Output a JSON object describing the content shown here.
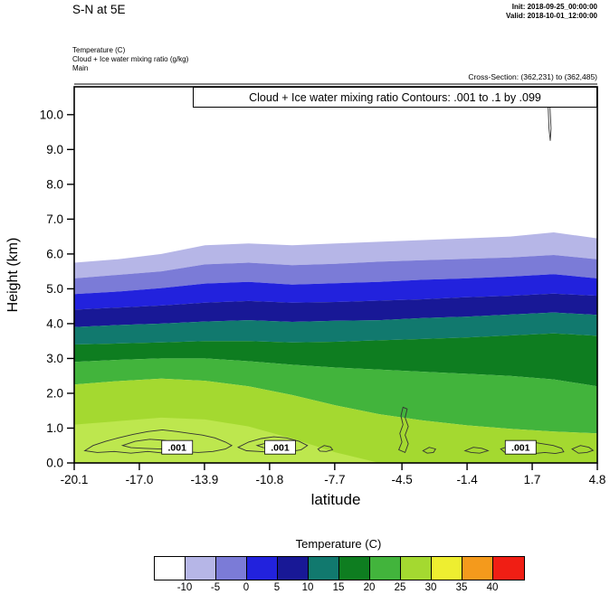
{
  "header": {
    "title": "S-N at 5E",
    "init": "Init: 2018-09-25_00:00:00",
    "valid": "Valid: 2018-10-01_12:00:00",
    "fields": [
      "Temperature   (C)",
      "Cloud + Ice water mixing ratio   (g/kg)",
      "Main"
    ],
    "cross_section": "Cross-Section: (362,231) to (362,485)"
  },
  "chart_data": {
    "type": "heatmap",
    "subtype": "filled-contour-vertical-cross-section",
    "title": "Cloud + Ice water mixing ratio Contours: .001 to .1 by .099",
    "xlabel": "latitude",
    "ylabel": "Height (km)",
    "xlim": [
      -20.1,
      4.8
    ],
    "ylim": [
      0,
      10.8
    ],
    "x_ticks": [
      -20.1,
      -17.0,
      -13.9,
      -10.8,
      -7.7,
      -4.5,
      -1.4,
      1.7,
      4.8
    ],
    "x_tick_labels": [
      "-20.1",
      "-17.0",
      "-13.9",
      "-10.8",
      "-7.7",
      "-4.5",
      "-1.4",
      "1.7",
      "4.8"
    ],
    "y_ticks": [
      0,
      1,
      2,
      3,
      4,
      5,
      6,
      7,
      8,
      9,
      10
    ],
    "y_tick_labels": [
      "0.0",
      "1.0",
      "2.0",
      "3.0",
      "4.0",
      "5.0",
      "6.0",
      "7.0",
      "8.0",
      "9.0",
      "10.0"
    ],
    "grid": false,
    "temperature_fill": {
      "units": "C",
      "levels": [
        -10,
        -5,
        0,
        5,
        10,
        15,
        20,
        25,
        30,
        35,
        40
      ],
      "colors": [
        "#ffffff",
        "#b6b6e7",
        "#7b7bd7",
        "#2222dd",
        "#181896",
        "#11796e",
        "#0e7d20",
        "#42b43c",
        "#a4d930",
        "#eeee30",
        "#f49a1c",
        "#f01e14"
      ],
      "band_boundaries": [
        {
          "level": -10,
          "heights": [
            5.75,
            5.85,
            6.0,
            6.25,
            6.3,
            6.25,
            6.3,
            6.35,
            6.4,
            6.45,
            6.5,
            6.62,
            6.45
          ]
        },
        {
          "level": -5,
          "heights": [
            5.3,
            5.4,
            5.5,
            5.7,
            5.75,
            5.68,
            5.72,
            5.78,
            5.82,
            5.86,
            5.9,
            5.97,
            5.85
          ]
        },
        {
          "level": 0,
          "heights": [
            4.85,
            4.92,
            5.02,
            5.15,
            5.2,
            5.12,
            5.16,
            5.2,
            5.26,
            5.3,
            5.35,
            5.42,
            5.3
          ]
        },
        {
          "level": 5,
          "heights": [
            4.4,
            4.46,
            4.52,
            4.6,
            4.65,
            4.6,
            4.62,
            4.66,
            4.7,
            4.76,
            4.8,
            4.86,
            4.8
          ]
        },
        {
          "level": 10,
          "heights": [
            3.9,
            3.96,
            4.0,
            4.06,
            4.1,
            4.05,
            4.08,
            4.1,
            4.16,
            4.2,
            4.26,
            4.32,
            4.25
          ]
        },
        {
          "level": 15,
          "heights": [
            3.4,
            3.43,
            3.46,
            3.5,
            3.5,
            3.46,
            3.48,
            3.52,
            3.56,
            3.6,
            3.66,
            3.72,
            3.65
          ]
        },
        {
          "level": 20,
          "heights": [
            2.9,
            2.96,
            3.0,
            3.0,
            2.92,
            2.82,
            2.74,
            2.68,
            2.62,
            2.56,
            2.5,
            2.4,
            2.2
          ]
        },
        {
          "level": 25,
          "heights": [
            2.25,
            2.35,
            2.42,
            2.36,
            2.2,
            1.95,
            1.65,
            1.4,
            1.22,
            1.08,
            0.98,
            0.9,
            0.85
          ]
        }
      ],
      "surface_patch": {
        "color": "#bde74e",
        "heights": [
          1.1,
          1.2,
          1.3,
          1.25,
          1.05,
          0.7,
          0.3,
          0.0,
          0.0,
          0.0,
          0.0,
          0.0,
          0.0
        ]
      }
    },
    "cloud_contours": {
      "levels_text": ".001 to .1 by .099",
      "color": "#333333",
      "labels": [
        {
          "x": -15.2,
          "y": 0.45,
          "text": ".001"
        },
        {
          "x": -10.3,
          "y": 0.45,
          "text": ".001"
        },
        {
          "x": 1.15,
          "y": 0.45,
          "text": ".001"
        }
      ],
      "paths": [
        {
          "closed": true,
          "points": [
            [
              -19.6,
              0.35
            ],
            [
              -19.2,
              0.5
            ],
            [
              -18.6,
              0.62
            ],
            [
              -18.0,
              0.72
            ],
            [
              -17.3,
              0.82
            ],
            [
              -16.6,
              0.9
            ],
            [
              -15.9,
              0.95
            ],
            [
              -15.2,
              0.9
            ],
            [
              -14.6,
              0.85
            ],
            [
              -14.0,
              0.8
            ],
            [
              -13.4,
              0.72
            ],
            [
              -12.9,
              0.6
            ],
            [
              -12.6,
              0.5
            ],
            [
              -12.9,
              0.4
            ],
            [
              -13.5,
              0.33
            ],
            [
              -14.2,
              0.3
            ],
            [
              -15.0,
              0.33
            ],
            [
              -15.8,
              0.28
            ],
            [
              -16.6,
              0.33
            ],
            [
              -17.4,
              0.28
            ],
            [
              -18.2,
              0.33
            ],
            [
              -19.0,
              0.3
            ]
          ]
        },
        {
          "closed": true,
          "points": [
            [
              -17.8,
              0.5
            ],
            [
              -17.2,
              0.62
            ],
            [
              -16.5,
              0.68
            ],
            [
              -15.8,
              0.65
            ],
            [
              -15.2,
              0.58
            ],
            [
              -14.8,
              0.5
            ],
            [
              -15.3,
              0.42
            ],
            [
              -16.0,
              0.4
            ],
            [
              -16.8,
              0.42
            ],
            [
              -17.4,
              0.44
            ]
          ]
        },
        {
          "closed": true,
          "points": [
            [
              -12.3,
              0.45
            ],
            [
              -11.8,
              0.6
            ],
            [
              -11.2,
              0.7
            ],
            [
              -10.6,
              0.75
            ],
            [
              -10.0,
              0.72
            ],
            [
              -9.4,
              0.62
            ],
            [
              -9.0,
              0.5
            ],
            [
              -9.3,
              0.38
            ],
            [
              -9.9,
              0.32
            ],
            [
              -10.6,
              0.3
            ],
            [
              -11.3,
              0.33
            ],
            [
              -11.9,
              0.35
            ]
          ]
        },
        {
          "closed": true,
          "points": [
            [
              -11.4,
              0.5
            ],
            [
              -10.9,
              0.58
            ],
            [
              -10.3,
              0.56
            ],
            [
              -10.0,
              0.48
            ],
            [
              -10.5,
              0.42
            ],
            [
              -11.1,
              0.44
            ]
          ]
        },
        {
          "closed": true,
          "points": [
            [
              -8.5,
              0.4
            ],
            [
              -8.2,
              0.5
            ],
            [
              -7.9,
              0.46
            ],
            [
              -7.8,
              0.38
            ],
            [
              -8.1,
              0.33
            ],
            [
              -8.4,
              0.34
            ]
          ]
        },
        {
          "closed": true,
          "points": [
            [
              -4.35,
              0.3
            ],
            [
              -4.2,
              0.55
            ],
            [
              -4.35,
              0.8
            ],
            [
              -4.2,
              1.05
            ],
            [
              -4.35,
              1.3
            ],
            [
              -4.25,
              1.55
            ],
            [
              -4.45,
              1.6
            ],
            [
              -4.55,
              1.35
            ],
            [
              -4.45,
              1.1
            ],
            [
              -4.6,
              0.85
            ],
            [
              -4.5,
              0.6
            ],
            [
              -4.65,
              0.38
            ]
          ]
        },
        {
          "closed": true,
          "points": [
            [
              -3.5,
              0.35
            ],
            [
              -3.2,
              0.45
            ],
            [
              -2.9,
              0.4
            ],
            [
              -3.0,
              0.3
            ],
            [
              -3.3,
              0.28
            ]
          ]
        },
        {
          "closed": true,
          "points": [
            [
              -1.5,
              0.35
            ],
            [
              -1.1,
              0.45
            ],
            [
              -0.7,
              0.42
            ],
            [
              -0.4,
              0.35
            ],
            [
              -0.8,
              0.28
            ],
            [
              -1.2,
              0.3
            ]
          ]
        },
        {
          "closed": true,
          "points": [
            [
              0.2,
              0.4
            ],
            [
              0.7,
              0.5
            ],
            [
              1.2,
              0.55
            ],
            [
              1.7,
              0.6
            ],
            [
              2.2,
              0.55
            ],
            [
              2.7,
              0.5
            ],
            [
              3.1,
              0.42
            ],
            [
              3.2,
              0.32
            ],
            [
              2.8,
              0.27
            ],
            [
              2.3,
              0.3
            ],
            [
              1.8,
              0.27
            ],
            [
              1.3,
              0.3
            ],
            [
              0.8,
              0.27
            ],
            [
              0.4,
              0.3
            ]
          ]
        },
        {
          "closed": true,
          "points": [
            [
              3.6,
              0.4
            ],
            [
              4.0,
              0.5
            ],
            [
              4.4,
              0.45
            ],
            [
              4.6,
              0.36
            ],
            [
              4.3,
              0.3
            ],
            [
              3.9,
              0.28
            ]
          ]
        },
        {
          "closed": false,
          "points": [
            [
              2.42,
              10.8
            ],
            [
              2.5,
              9.6
            ],
            [
              2.56,
              9.25
            ],
            [
              2.6,
              9.6
            ],
            [
              2.54,
              10.3
            ],
            [
              2.58,
              10.8
            ]
          ]
        }
      ]
    },
    "colorbar": {
      "title": "Temperature  (C)",
      "tick_labels": [
        "-10",
        "-5",
        "0",
        "5",
        "10",
        "15",
        "20",
        "25",
        "30",
        "35",
        "40"
      ]
    }
  }
}
